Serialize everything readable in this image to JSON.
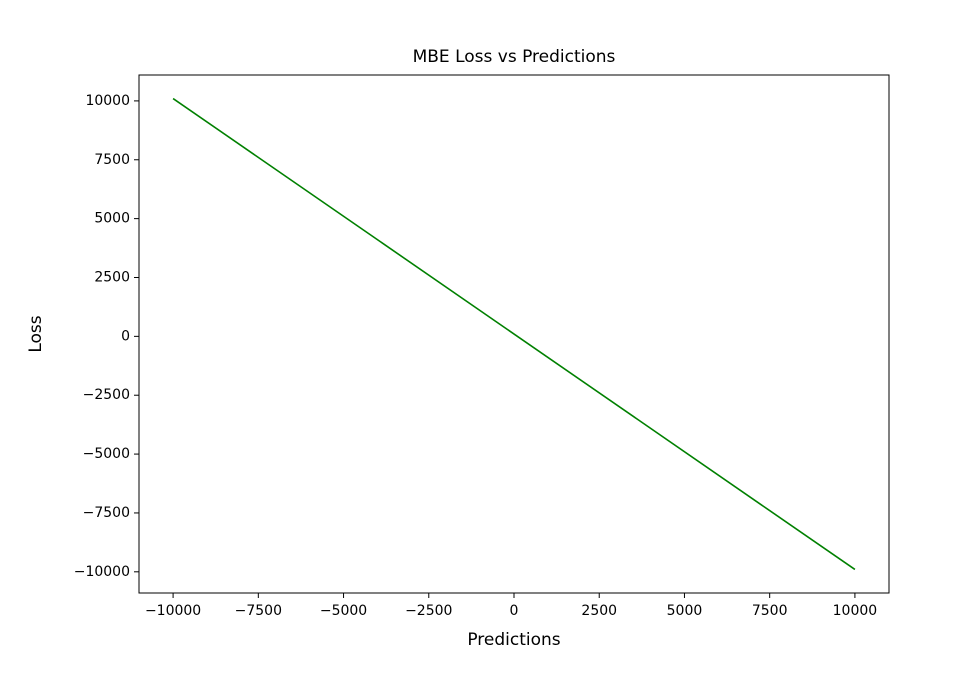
{
  "chart_data": {
    "type": "line",
    "title": "MBE Loss vs Predictions",
    "x_label": "Predictions",
    "y_label": "Loss",
    "x": [
      -10000,
      10000
    ],
    "series": [
      {
        "name": "MBE Loss",
        "color": "#008000",
        "values": [
          10100,
          -9900
        ]
      }
    ],
    "xlim": [
      -11000,
      11000
    ],
    "xticks": [
      {
        "value": -10000,
        "label": "−10000"
      },
      {
        "value": -7500,
        "label": "−7500"
      },
      {
        "value": -5000,
        "label": "−5000"
      },
      {
        "value": -2500,
        "label": "−2500"
      },
      0,
      2500,
      5000,
      7500,
      10000
    ],
    "ylim": [
      -10900,
      11100
    ],
    "yticks": [
      {
        "value": -10000,
        "label": "−10000"
      },
      {
        "value": -7500,
        "label": "−7500"
      },
      {
        "value": -5000,
        "label": "−5000"
      },
      {
        "value": -2500,
        "label": "−2500"
      },
      0,
      2500,
      5000,
      7500,
      10000
    ],
    "grid": false
  }
}
